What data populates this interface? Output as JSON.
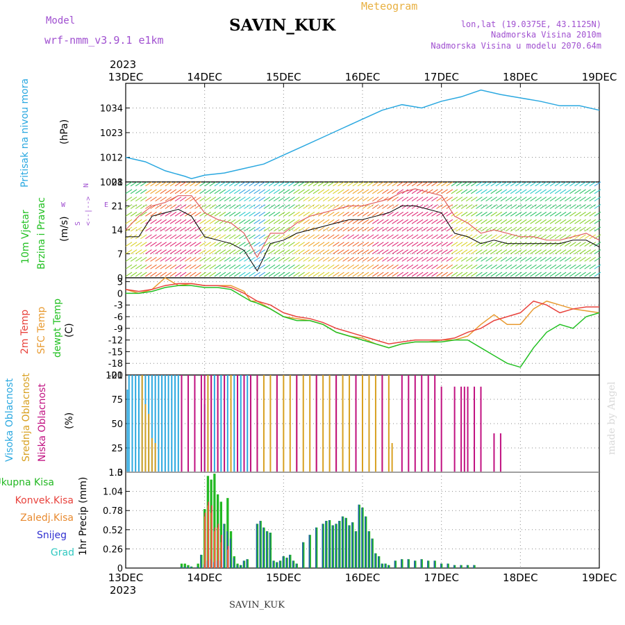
{
  "header": {
    "model_label": "Model",
    "model_name": "wrf-nmm_v3.9.1 e1km",
    "station": "SAVIN_KUK",
    "title": "Meteogram",
    "lonlat": "lon,lat (19.0375E, 43.1125N)",
    "elevation": "Nadmorska Visina 2010m",
    "model_elevation": "Nadmorska Visina u modelu 2070.64m",
    "year_top": "2023",
    "year_bottom": "2023",
    "footer_station": "SAVIN_KUK",
    "credit": "made by Angel"
  },
  "colors": {
    "pressure": "#2aa8e0",
    "temp2m": "#e8423c",
    "sfc_temp": "#e89a30",
    "dewpoint": "#22c022",
    "cloud_high": "#2aa8e0",
    "cloud_mid": "#d8a020",
    "cloud_low": "#c01080",
    "precip_total": "#22b822",
    "precip_conv": "#e8423c",
    "precip_frozen": "#e88a30",
    "precip_snow": "#3030d0",
    "precip_grad": "#30c8c0",
    "wind_mean": "#000000",
    "wind_gust": "#e06060"
  },
  "x_axis": {
    "tick_labels": [
      "13DEC",
      "14DEC",
      "15DEC",
      "16DEC",
      "17DEC",
      "18DEC",
      "19DEC"
    ],
    "range_hours": [
      0,
      144
    ]
  },
  "chart_data": [
    {
      "type": "line",
      "name": "pressure",
      "ylabel_side": "Pritisak na nivou mora",
      "ylabel_unit": "(hPa)",
      "ylim": [
        1001,
        1045
      ],
      "yticks": [
        "1001",
        "1012",
        "1023",
        "1034"
      ],
      "x": [
        0,
        6,
        12,
        18,
        20,
        24,
        30,
        36,
        42,
        48,
        54,
        60,
        66,
        72,
        78,
        84,
        90,
        96,
        102,
        108,
        114,
        120,
        126,
        132,
        138,
        144
      ],
      "y": [
        1012,
        1010,
        1006,
        1003.5,
        1002.5,
        1004,
        1005,
        1007,
        1009,
        1013,
        1017,
        1021,
        1025,
        1029,
        1033,
        1035.5,
        1034,
        1037,
        1039,
        1042,
        1040,
        1038.5,
        1037,
        1035,
        1035,
        1033
      ]
    },
    {
      "type": "line",
      "name": "wind",
      "ylabel_side_1": "10m Vjetar",
      "ylabel_side_2": "Brzina i Pravac",
      "ylabel_unit": "(m/s)",
      "legend_labels": [
        "W",
        "<--|-->",
        "S",
        "N"
      ],
      "ylim": [
        0,
        28
      ],
      "yticks": [
        "0",
        "7",
        "14",
        "21",
        "28"
      ],
      "series": [
        {
          "key": "mean",
          "x": [
            0,
            4,
            8,
            12,
            16,
            20,
            24,
            28,
            32,
            36,
            40,
            44,
            48,
            52,
            56,
            60,
            64,
            68,
            72,
            76,
            80,
            84,
            88,
            92,
            96,
            100,
            104,
            108,
            112,
            116,
            120,
            124,
            128,
            132,
            136,
            140,
            144
          ],
          "y": [
            12,
            12,
            18,
            19,
            20,
            18,
            12,
            11,
            10,
            8,
            2,
            10,
            11,
            13,
            14,
            15,
            16,
            17,
            17,
            18,
            19,
            21,
            21,
            20,
            19,
            13,
            12,
            10,
            11,
            10,
            10,
            10,
            10,
            10,
            11,
            11,
            9
          ]
        },
        {
          "key": "gust",
          "x": [
            0,
            4,
            8,
            12,
            16,
            20,
            24,
            28,
            32,
            36,
            40,
            44,
            48,
            52,
            56,
            60,
            64,
            68,
            72,
            76,
            80,
            84,
            88,
            92,
            96,
            100,
            104,
            108,
            112,
            116,
            120,
            124,
            128,
            132,
            136,
            140,
            144
          ],
          "y": [
            14,
            18,
            21,
            22,
            24,
            24,
            19,
            17,
            16,
            13,
            6,
            13,
            13,
            16,
            18,
            19,
            20,
            21,
            21,
            22,
            23,
            25,
            26,
            25,
            24,
            18,
            16,
            13,
            14,
            13,
            12,
            12,
            11,
            11,
            12,
            13,
            11
          ]
        }
      ]
    },
    {
      "type": "line",
      "name": "temperature",
      "ylabel_side_1": "2m Temp",
      "ylabel_side_2": "SFC Temp",
      "ylabel_side_3": "dewpt Temp",
      "ylabel_unit": "(C)",
      "ylim": [
        -21,
        4
      ],
      "yticks": [
        "-21",
        "-18",
        "-15",
        "-12",
        "-9",
        "-6",
        "-3",
        "0",
        "3"
      ],
      "series": [
        {
          "key": "temp2m",
          "x": [
            0,
            4,
            8,
            12,
            16,
            20,
            24,
            28,
            32,
            36,
            38,
            40,
            44,
            48,
            52,
            56,
            60,
            64,
            68,
            72,
            76,
            80,
            84,
            88,
            92,
            96,
            100,
            104,
            108,
            112,
            116,
            120,
            124,
            128,
            132,
            136,
            140,
            144
          ],
          "y": [
            1,
            0.5,
            1,
            2,
            2.5,
            2.5,
            2,
            2,
            1.5,
            0,
            -1,
            -2,
            -3,
            -5,
            -6,
            -6.5,
            -7.5,
            -9,
            -10,
            -11,
            -12,
            -13,
            -12.5,
            -12,
            -12,
            -12,
            -11.5,
            -10,
            -9,
            -7,
            -6,
            -5,
            -2,
            -3,
            -5,
            -4,
            -3.5,
            -3.5
          ]
        },
        {
          "key": "sfc_temp",
          "x": [
            0,
            4,
            8,
            12,
            16,
            20,
            24,
            28,
            32,
            36,
            38,
            40,
            44,
            48,
            52,
            56,
            60,
            64,
            68,
            72,
            76,
            80,
            84,
            88,
            92,
            96,
            100,
            104,
            108,
            112,
            116,
            120,
            124,
            128,
            132,
            136,
            140,
            144
          ],
          "y": [
            1,
            0,
            1,
            4,
            2,
            2.5,
            2,
            2,
            2,
            0.5,
            -2,
            -2,
            -4,
            -6,
            -6.5,
            -7,
            -8,
            -10,
            -11,
            -11.5,
            -13,
            -14,
            -13,
            -12.5,
            -12.5,
            -12,
            -12,
            -11,
            -8,
            -5.5,
            -8,
            -8,
            -4,
            -2,
            -3,
            -4,
            -4.5,
            -5
          ]
        },
        {
          "key": "dewpoint",
          "x": [
            0,
            4,
            8,
            12,
            16,
            20,
            24,
            28,
            32,
            36,
            38,
            40,
            44,
            48,
            52,
            56,
            60,
            64,
            68,
            72,
            76,
            80,
            84,
            88,
            92,
            96,
            100,
            104,
            108,
            112,
            116,
            120,
            124,
            128,
            132,
            136,
            140,
            144
          ],
          "y": [
            0,
            0,
            0.5,
            1.5,
            2,
            2,
            1.5,
            1.5,
            1,
            -1,
            -2,
            -2.5,
            -4,
            -6,
            -7,
            -7,
            -8,
            -10,
            -11,
            -12,
            -13,
            -14,
            -13,
            -12.5,
            -12.5,
            -12.5,
            -12,
            -12,
            -14,
            -16,
            -18,
            -19,
            -14,
            -10,
            -8,
            -9,
            -6,
            -5
          ]
        }
      ]
    },
    {
      "type": "bar",
      "name": "cloudiness",
      "ylabel_side_1": "Visoka Oblacnost",
      "ylabel_side_2": "Srednja Oblacnost",
      "ylabel_side_3": "Niska Oblacnost",
      "ylabel_unit": "(%)",
      "ylim": [
        0,
        100
      ],
      "yticks": [
        "0",
        "25",
        "50",
        "75",
        "100"
      ],
      "high": {
        "x": [
          0.5,
          1,
          2,
          3,
          4,
          5,
          6,
          7,
          8,
          9,
          10,
          11,
          12,
          13,
          14,
          15,
          16,
          24,
          25,
          27,
          29,
          31,
          33,
          35,
          37
        ],
        "y": [
          85,
          100,
          100,
          100,
          100,
          100,
          100,
          100,
          100,
          100,
          100,
          100,
          100,
          100,
          100,
          100,
          100,
          70,
          100,
          100,
          100,
          100,
          100,
          100,
          100
        ]
      },
      "mid": {
        "x": [
          5,
          6,
          7,
          8,
          9,
          25,
          26,
          28,
          30,
          32,
          34,
          36,
          38,
          40,
          42,
          44,
          46,
          48,
          50,
          52,
          54,
          56,
          58,
          60,
          62,
          64,
          66,
          68,
          70,
          72,
          74,
          76,
          78,
          80,
          81
        ],
        "y": [
          100,
          70,
          60,
          35,
          30,
          100,
          100,
          100,
          100,
          100,
          100,
          100,
          100,
          100,
          100,
          100,
          100,
          100,
          100,
          100,
          100,
          100,
          100,
          100,
          100,
          100,
          100,
          100,
          100,
          100,
          100,
          100,
          100,
          100,
          30
        ]
      },
      "low": {
        "x": [
          17,
          19,
          21,
          23,
          24,
          26,
          28,
          30,
          34,
          36,
          38,
          40,
          46,
          52,
          58,
          64,
          70,
          78,
          84,
          86,
          88,
          90,
          92,
          94,
          96,
          100,
          102,
          103,
          104,
          106,
          108,
          112,
          114
        ],
        "y": [
          100,
          100,
          100,
          100,
          100,
          100,
          100,
          100,
          100,
          100,
          100,
          100,
          100,
          100,
          100,
          100,
          100,
          100,
          100,
          100,
          100,
          100,
          100,
          100,
          88,
          88,
          88,
          88,
          88,
          88,
          88,
          40,
          40
        ]
      }
    },
    {
      "type": "bar",
      "name": "precipitation",
      "legend": [
        "Ukupna Kisa",
        "Konvek.Kisa",
        "Zaledj.Kisa",
        "Snijeg",
        "Grad"
      ],
      "ylabel_unit": "1hr Precip (mm)",
      "ylim": [
        0,
        1.3
      ],
      "yticks": [
        "0",
        "0.26",
        "0.52",
        "0.78",
        "1.04",
        "1.3"
      ],
      "x": [
        17,
        18,
        19,
        20,
        22,
        23,
        24,
        25,
        26,
        27,
        28,
        29,
        30,
        31,
        32,
        33,
        34,
        35,
        36,
        37,
        40,
        41,
        42,
        43,
        44,
        45,
        46,
        47,
        48,
        49,
        50,
        51,
        52,
        54,
        56,
        58,
        60,
        61,
        62,
        63,
        64,
        65,
        66,
        67,
        68,
        69,
        70,
        71,
        72,
        73,
        74,
        75,
        76,
        77,
        78,
        79,
        80,
        82,
        84,
        86,
        88,
        90,
        92,
        94,
        96,
        98,
        100,
        102,
        104,
        106
      ],
      "total": [
        0.06,
        0.06,
        0.04,
        0.02,
        0.06,
        0.18,
        0.8,
        1.25,
        1.2,
        1.28,
        1.0,
        0.9,
        0.6,
        0.95,
        0.5,
        0.16,
        0.06,
        0.04,
        0.1,
        0.12,
        0.6,
        0.64,
        0.55,
        0.5,
        0.48,
        0.1,
        0.08,
        0.1,
        0.16,
        0.14,
        0.18,
        0.1,
        0.06,
        0.35,
        0.45,
        0.55,
        0.6,
        0.64,
        0.65,
        0.58,
        0.6,
        0.64,
        0.7,
        0.68,
        0.58,
        0.62,
        0.5,
        0.86,
        0.82,
        0.7,
        0.5,
        0.4,
        0.2,
        0.16,
        0.06,
        0.06,
        0.04,
        0.1,
        0.12,
        0.12,
        0.1,
        0.12,
        0.1,
        0.1,
        0.06,
        0.06,
        0.04,
        0.04,
        0.04,
        0.04
      ],
      "snow": [
        0.02,
        0.02,
        0.02,
        0.02,
        0.02,
        0.18,
        0.05,
        0.1,
        0.12,
        0.08,
        0.1,
        0.1,
        0.6,
        0.5,
        0.4,
        0.14,
        0.04,
        0.04,
        0.1,
        0.12,
        0.6,
        0.64,
        0.55,
        0.5,
        0.48,
        0.1,
        0.08,
        0.1,
        0.16,
        0.14,
        0.18,
        0.1,
        0.06,
        0.35,
        0.45,
        0.55,
        0.6,
        0.64,
        0.65,
        0.58,
        0.6,
        0.64,
        0.7,
        0.68,
        0.58,
        0.62,
        0.5,
        0.86,
        0.82,
        0.7,
        0.5,
        0.4,
        0.2,
        0.16,
        0.06,
        0.06,
        0.04,
        0.1,
        0.12,
        0.12,
        0.1,
        0.12,
        0.1,
        0.1,
        0.06,
        0.06,
        0.04,
        0.04,
        0.04,
        0.04
      ],
      "conv": [
        0,
        0,
        0,
        0,
        0,
        0,
        0.75,
        0.9,
        0.85,
        0.55,
        0.6,
        0.45,
        0,
        0.3,
        0,
        0,
        0,
        0,
        0,
        0,
        0,
        0,
        0,
        0,
        0,
        0,
        0,
        0,
        0,
        0,
        0,
        0,
        0,
        0,
        0,
        0,
        0,
        0,
        0,
        0,
        0,
        0,
        0,
        0,
        0,
        0,
        0,
        0,
        0,
        0,
        0,
        0,
        0,
        0,
        0,
        0,
        0,
        0,
        0,
        0,
        0,
        0,
        0,
        0,
        0,
        0,
        0,
        0,
        0,
        0
      ],
      "frozen": [
        0,
        0,
        0,
        0,
        0,
        0,
        0.7,
        0.85,
        0.75,
        0.5,
        0.55,
        0.35,
        0,
        0.25,
        0,
        0,
        0,
        0,
        0,
        0,
        0,
        0,
        0,
        0,
        0,
        0,
        0,
        0,
        0,
        0,
        0,
        0,
        0,
        0,
        0,
        0,
        0,
        0,
        0,
        0,
        0,
        0,
        0,
        0,
        0,
        0,
        0,
        0,
        0,
        0,
        0,
        0,
        0,
        0,
        0,
        0,
        0,
        0,
        0,
        0,
        0,
        0,
        0,
        0,
        0,
        0,
        0,
        0,
        0,
        0
      ]
    }
  ]
}
